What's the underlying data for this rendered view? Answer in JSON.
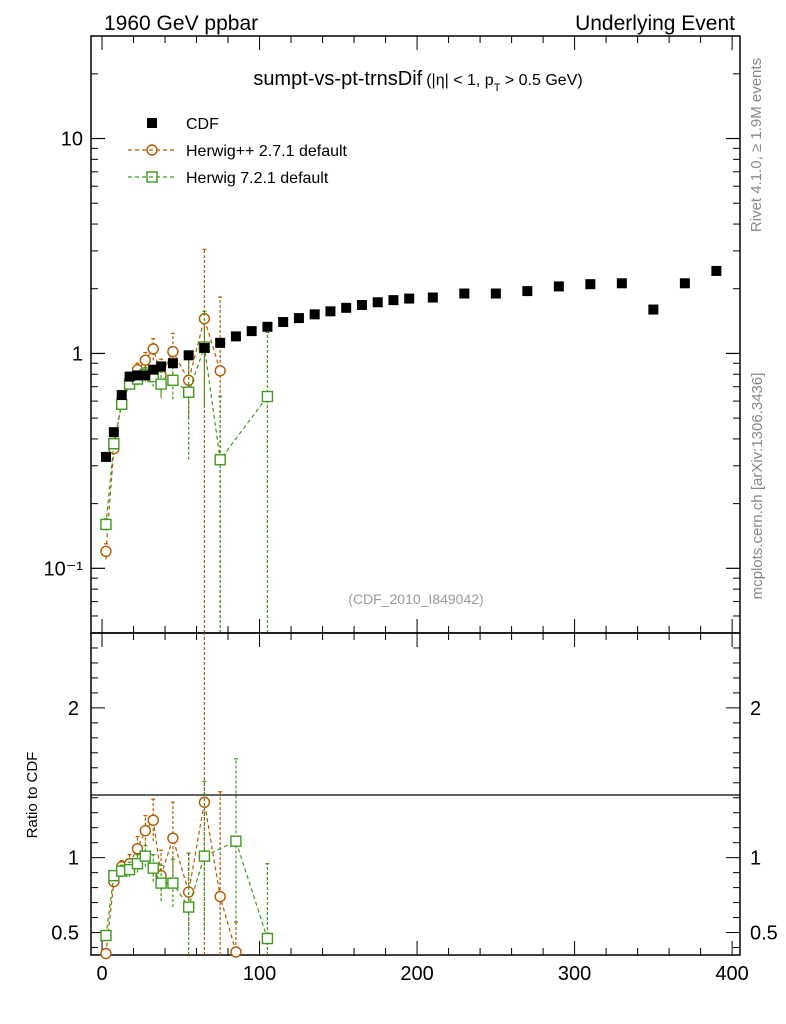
{
  "header": {
    "left": "1960 GeV ppbar",
    "right": "Underlying Event"
  },
  "side": {
    "rivet": "Rivet 4.1.0, ≥ 1.9M events",
    "mcplots": "mcplots.cern.ch [arXiv:1306.3436]"
  },
  "colors": {
    "cdf": "#000000",
    "herwigpp": "#b35900",
    "herwig7": "#3c9a1c"
  },
  "chart_data": [
    {
      "type": "scatter",
      "title": "sumpt-vs-pt-trnsDif",
      "title_sub_1": "(|η| < 1, p",
      "title_sub_T": "T",
      "title_sub_2": " > 0.5 GeV)",
      "watermark": "(CDF_2010_I849042)",
      "yscale": "log",
      "xlim": [
        -7,
        405
      ],
      "ylim": [
        0.05,
        30
      ],
      "yticks": [
        "10⁻¹",
        "1",
        "10"
      ],
      "legend": [
        "CDF",
        "Herwig++ 2.7.1 default",
        "Herwig 7.2.1 default"
      ],
      "series": [
        {
          "name": "CDF",
          "x": [
            2.5,
            7.5,
            12.5,
            17.5,
            22.5,
            27.5,
            32.5,
            37.5,
            45,
            55,
            65,
            75,
            85,
            95,
            105,
            115,
            125,
            135,
            145,
            155,
            165,
            175,
            185,
            195,
            210,
            230,
            250,
            270,
            290,
            310,
            330,
            350,
            370,
            390
          ],
          "y": [
            0.33,
            0.43,
            0.64,
            0.78,
            0.79,
            0.79,
            0.84,
            0.87,
            0.9,
            0.98,
            1.06,
            1.12,
            1.2,
            1.27,
            1.33,
            1.4,
            1.46,
            1.52,
            1.57,
            1.63,
            1.68,
            1.73,
            1.77,
            1.8,
            1.82,
            1.9,
            1.9,
            1.95,
            2.05,
            2.1,
            2.12,
            1.6,
            2.12,
            2.42
          ]
        },
        {
          "name": "Herwig++ 2.7.1 default",
          "x": [
            2.5,
            7.5,
            12.5,
            17.5,
            22.5,
            27.5,
            32.5,
            37.5,
            45,
            55,
            65,
            75
          ],
          "y": [
            0.12,
            0.36,
            0.6,
            0.75,
            0.84,
            0.93,
            1.05,
            0.79,
            1.02,
            0.75,
            1.45,
            0.83
          ],
          "err": [
            0.01,
            0.02,
            0.03,
            0.05,
            0.06,
            0.08,
            0.12,
            0.15,
            0.22,
            0.25,
            1.6,
            1.0
          ]
        },
        {
          "name": "Herwig 7.2.1 default",
          "x": [
            2.5,
            7.5,
            12.5,
            17.5,
            22.5,
            27.5,
            32.5,
            37.5,
            45,
            55,
            65,
            75,
            105
          ],
          "y": [
            0.16,
            0.38,
            0.58,
            0.72,
            0.76,
            0.8,
            0.78,
            0.72,
            0.75,
            0.66,
            1.07,
            0.32,
            0.63
          ],
          "err": [
            0.01,
            0.02,
            0.03,
            0.04,
            0.05,
            0.06,
            0.08,
            0.1,
            0.14,
            0.34,
            0.5,
            0.31,
            0.62
          ]
        }
      ]
    },
    {
      "type": "scatter",
      "ylabel": "Ratio to CDF",
      "xlim": [
        -7,
        405
      ],
      "ylim": [
        0.35,
        2.5
      ],
      "yticks": [
        "0.5",
        "1",
        "2"
      ],
      "xticks": [
        "0",
        "100",
        "200",
        "300",
        "400"
      ],
      "series": [
        {
          "name": "Herwig++ 2.7.1 default",
          "x": [
            2.5,
            7.5,
            12.5,
            17.5,
            22.5,
            27.5,
            32.5,
            37.5,
            45,
            55,
            65,
            75,
            85
          ],
          "y": [
            0.36,
            0.84,
            0.94,
            0.96,
            1.06,
            1.18,
            1.25,
            0.88,
            1.13,
            0.77,
            1.37,
            0.74,
            0.37
          ],
          "err": [
            0.03,
            0.03,
            0.04,
            0.06,
            0.08,
            0.1,
            0.14,
            0.17,
            0.24,
            0.26,
            1.5,
            0.7,
            0.2
          ]
        },
        {
          "name": "Herwig 7.2.1 default",
          "x": [
            2.5,
            7.5,
            12.5,
            17.5,
            22.5,
            27.5,
            32.5,
            37.5,
            45,
            55,
            65,
            85,
            105
          ],
          "y": [
            0.48,
            0.88,
            0.91,
            0.92,
            0.96,
            1.01,
            0.93,
            0.83,
            0.83,
            0.67,
            1.01,
            1.11,
            0.46
          ],
          "err": [
            0.02,
            0.03,
            0.04,
            0.05,
            0.06,
            0.07,
            0.09,
            0.12,
            0.16,
            0.36,
            0.5,
            0.55,
            0.5
          ]
        }
      ]
    }
  ]
}
